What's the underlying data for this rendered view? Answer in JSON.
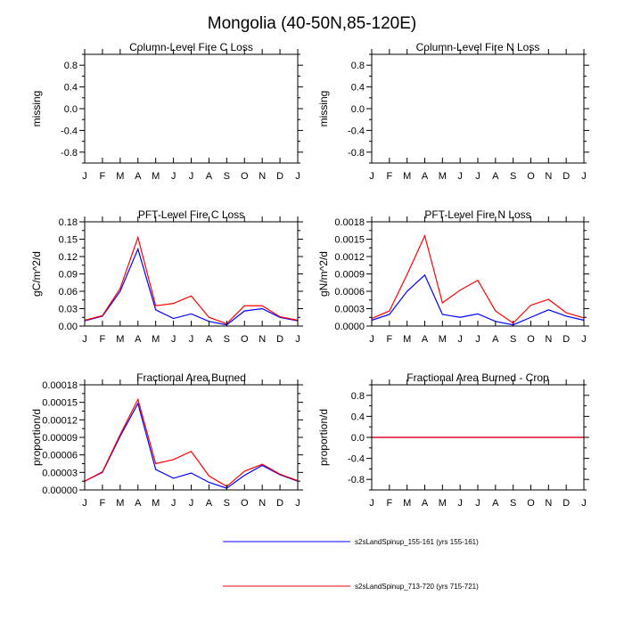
{
  "page_title": "Mongolia (40-50N,85-120E)",
  "months": [
    "J",
    "F",
    "M",
    "A",
    "M",
    "J",
    "J",
    "A",
    "S",
    "O",
    "N",
    "D",
    "J"
  ],
  "colors": {
    "run1": "#0000ff",
    "run2": "#ff0000",
    "axis": "#000000"
  },
  "legend": [
    {
      "label": "s2sLandSpinup_155-161 (yrs 155-161)",
      "color": "#0000ff"
    },
    {
      "label": "s2sLandSpinup_713-720 (yrs 715-721)",
      "color": "#ff0000"
    }
  ],
  "chart_data": [
    {
      "type": "line",
      "title": "Column-Level Fire C Loss",
      "ylabel": "missing",
      "ylim": [
        -1,
        1
      ],
      "yticks": [
        -0.8,
        -0.4,
        0.0,
        0.4,
        0.8
      ],
      "ytick_labels": [
        "-0.8",
        "-0.4",
        "0.0",
        "0.4",
        "0.8"
      ],
      "series": []
    },
    {
      "type": "line",
      "title": "Column-Level Fire N Loss",
      "ylabel": "missing",
      "ylim": [
        -1,
        1
      ],
      "yticks": [
        -0.8,
        -0.4,
        0.0,
        0.4,
        0.8
      ],
      "ytick_labels": [
        "-0.8",
        "-0.4",
        "0.0",
        "0.4",
        "0.8"
      ],
      "series": []
    },
    {
      "type": "line",
      "title": "PFT-Level Fire C Loss",
      "ylabel": "gC/m^2/d",
      "ylim": [
        0,
        0.18
      ],
      "yticks": [
        0,
        0.03,
        0.06,
        0.09,
        0.12,
        0.15,
        0.18
      ],
      "ytick_labels": [
        "0.00",
        "0.03",
        "0.06",
        "0.09",
        "0.12",
        "0.15",
        "0.18"
      ],
      "series": [
        {
          "name": "s2sLandSpinup_155-161 (yrs 155-161)",
          "color": "#0000ff",
          "values": [
            0.009,
            0.017,
            0.06,
            0.133,
            0.028,
            0.013,
            0.021,
            0.008,
            0.002,
            0.026,
            0.03,
            0.015,
            0.009
          ]
        },
        {
          "name": "s2sLandSpinup_713-720 (yrs 715-721)",
          "color": "#ff0000",
          "values": [
            0.01,
            0.018,
            0.065,
            0.153,
            0.035,
            0.039,
            0.052,
            0.015,
            0.004,
            0.035,
            0.035,
            0.016,
            0.01
          ]
        }
      ]
    },
    {
      "type": "line",
      "title": "PFT-Level Fire N Loss",
      "ylabel": "gN/m^2/d",
      "ylim": [
        0,
        0.0018
      ],
      "yticks": [
        0,
        0.0003,
        0.0006,
        0.0009,
        0.0012,
        0.0015,
        0.0018
      ],
      "ytick_labels": [
        "0.0000",
        "0.0003",
        "0.0006",
        "0.0009",
        "0.0012",
        "0.0015",
        "0.0018"
      ],
      "series": [
        {
          "name": "s2sLandSpinup_155-161 (yrs 155-161)",
          "color": "#0000ff",
          "values": [
            0.0001,
            0.0002,
            0.0006,
            0.00088,
            0.0002,
            0.00015,
            0.00021,
            8e-05,
            2e-05,
            0.00015,
            0.00028,
            0.00017,
            0.0001
          ]
        },
        {
          "name": "s2sLandSpinup_713-720 (yrs 715-721)",
          "color": "#ff0000",
          "values": [
            0.00013,
            0.00026,
            0.00089,
            0.00156,
            0.0004,
            0.00062,
            0.00079,
            0.00026,
            5e-05,
            0.00036,
            0.00046,
            0.00023,
            0.00014
          ]
        }
      ]
    },
    {
      "type": "line",
      "title": "Fractional Area Burned",
      "ylabel": "proportion/d",
      "ylim": [
        0,
        0.00018
      ],
      "yticks": [
        0,
        3e-05,
        6e-05,
        9e-05,
        0.00012,
        0.00015,
        0.00018
      ],
      "ytick_labels": [
        "0.00000",
        "0.00003",
        "0.00006",
        "0.00009",
        "0.00012",
        "0.00015",
        "0.00018"
      ],
      "series": [
        {
          "name": "s2sLandSpinup_155-161 (yrs 155-161)",
          "color": "#0000ff",
          "values": [
            1.5e-05,
            3e-05,
            9.2e-05,
            0.000148,
            3.5e-05,
            2e-05,
            2.9e-05,
            1.3e-05,
            3e-06,
            2.5e-05,
            4.2e-05,
            2.6e-05,
            1.5e-05
          ]
        },
        {
          "name": "s2sLandSpinup_713-720 (yrs 715-721)",
          "color": "#ff0000",
          "values": [
            1.5e-05,
            3.1e-05,
            9.5e-05,
            0.000155,
            4.5e-05,
            5.2e-05,
            6.6e-05,
            2.4e-05,
            6e-06,
            3.2e-05,
            4.4e-05,
            2.7e-05,
            1.6e-05
          ]
        }
      ]
    },
    {
      "type": "line",
      "title": "Fractional Area Burned - Crop",
      "ylabel": "proportion/d",
      "ylim": [
        -1,
        1
      ],
      "yticks": [
        -0.8,
        -0.4,
        0.0,
        0.4,
        0.8
      ],
      "ytick_labels": [
        "-0.8",
        "-0.4",
        "0.0",
        "0.4",
        "0.8"
      ],
      "series": [
        {
          "name": "s2sLandSpinup_155-161 (yrs 155-161)",
          "color": "#0000ff",
          "values": [
            0,
            0,
            0,
            0,
            0,
            0,
            0,
            0,
            0,
            0,
            0,
            0,
            0
          ]
        },
        {
          "name": "s2sLandSpinup_713-720 (yrs 715-721)",
          "color": "#ff0000",
          "values": [
            0,
            0,
            0,
            0,
            0,
            0,
            0,
            0,
            0,
            0,
            0,
            0,
            0
          ]
        }
      ]
    }
  ]
}
